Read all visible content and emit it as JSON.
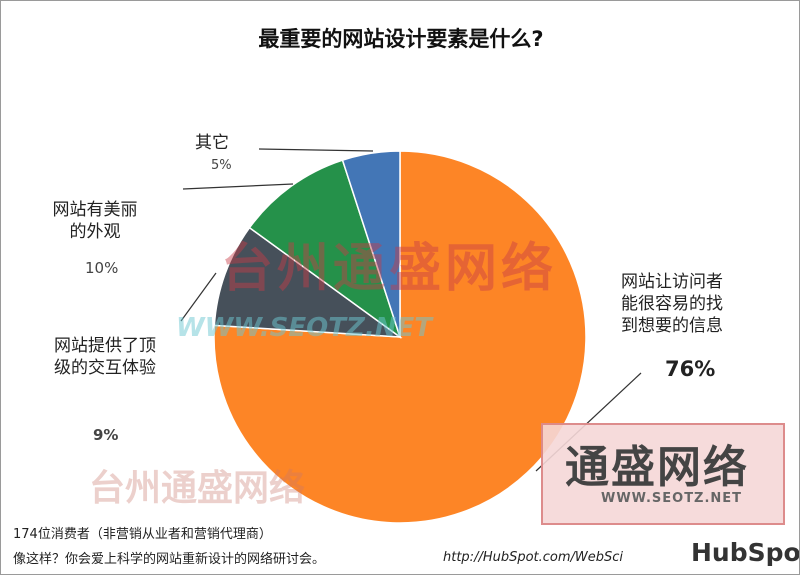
{
  "chart_data": {
    "type": "pie",
    "title": "最重要的网站设计要素是什么?",
    "slices": [
      {
        "label": "网站让访问者能很容易的找到想要的信息",
        "value": 76,
        "value_label": "76%",
        "color": "#fd8526"
      },
      {
        "label": "网站提供了顶级的交互体验",
        "value": 9,
        "value_label": "9%",
        "color": "#46505a"
      },
      {
        "label": "网站有美丽的外观",
        "value": 10,
        "value_label": "10%",
        "color": "#25914a"
      },
      {
        "label": "其它",
        "value": 5,
        "value_label": "5%",
        "color": "#4376b6"
      }
    ],
    "start_angle_deg": 0,
    "direction": "clockwise"
  },
  "footer": {
    "line1": "174位消费者（非营销从业者和营销代理商）",
    "line2": "像这样？你会爱上科学的网站重新设计的网络研讨会。",
    "url": "http://HubSpot.com/WebSci",
    "logo": "HubSpot"
  },
  "watermark": {
    "cn": "台州通盛网络",
    "url": "WWW.SEOTZ.NET",
    "box_cn": "通盛网络",
    "box_url": "WWW.SEOTZ.NET"
  }
}
